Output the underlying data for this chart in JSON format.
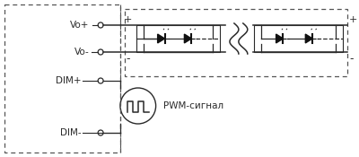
{
  "bg_color": "#ffffff",
  "line_color": "#2a2a2a",
  "dash_color": "#555555",
  "labels": {
    "vo_plus": "Vo+",
    "vo_minus": "Vo-",
    "dim_plus": "DIM+",
    "dim_minus": "DIM-",
    "pwm": "PWM-сигнал",
    "plus_left": "+",
    "minus_left": "-",
    "plus_right": "+",
    "minus_right": "-"
  },
  "font_size": 7.5
}
